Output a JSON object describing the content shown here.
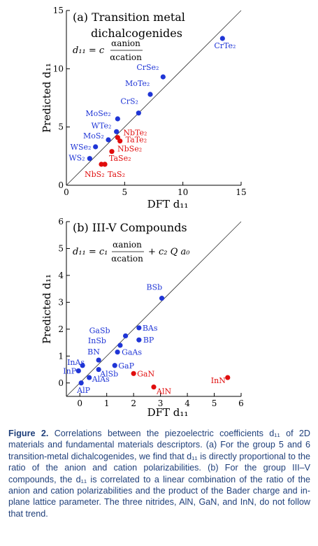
{
  "chart_data": [
    {
      "type": "scatter",
      "title": "(a) Transition metal dichalcogenides",
      "title_lines": [
        "(a) Transition metal",
        "dichalcogenides"
      ],
      "formula": {
        "lhs": "d₁₁ = c",
        "num": "αanion",
        "den": "αcation"
      },
      "xlabel": "DFT d₁₁",
      "ylabel": "Predicted d₁₁",
      "xlim": [
        0,
        15
      ],
      "ylim": [
        0,
        15
      ],
      "xticks": [
        0,
        5,
        10,
        15
      ],
      "yticks": [
        0,
        5,
        10,
        15
      ],
      "xtick_labels": [
        "0",
        "5",
        "10",
        "15"
      ],
      "ytick_labels": [
        "0",
        "5",
        "10",
        "15"
      ],
      "diagonal": true,
      "grid": false,
      "colors": {
        "blue": "#1f35d6",
        "red": "#e00d0d"
      },
      "points": [
        {
          "label": "CrTe₂",
          "x": 13.4,
          "y": 12.6,
          "color": "blue"
        },
        {
          "label": "CrSe₂",
          "x": 8.3,
          "y": 9.3,
          "color": "blue"
        },
        {
          "label": "MoTe₂",
          "x": 7.2,
          "y": 7.8,
          "color": "blue"
        },
        {
          "label": "CrS₂",
          "x": 6.2,
          "y": 6.2,
          "color": "blue"
        },
        {
          "label": "MoSe₂",
          "x": 4.4,
          "y": 5.7,
          "color": "blue"
        },
        {
          "label": "WTe₂",
          "x": 4.3,
          "y": 4.6,
          "color": "blue"
        },
        {
          "label": "MoS₂",
          "x": 3.6,
          "y": 3.9,
          "color": "blue"
        },
        {
          "label": "WSe₂",
          "x": 2.5,
          "y": 3.3,
          "color": "blue"
        },
        {
          "label": "WS₂",
          "x": 2.0,
          "y": 2.3,
          "color": "blue"
        },
        {
          "label": "NbTe₂",
          "x": 4.4,
          "y": 4.1,
          "color": "red"
        },
        {
          "label": "TaTe₂",
          "x": 4.6,
          "y": 3.8,
          "color": "red"
        },
        {
          "label": "NbSe₂",
          "x": 3.9,
          "y": 2.9,
          "color": "red"
        },
        {
          "label": "TaSe₂",
          "x": 3.3,
          "y": 1.8,
          "color": "red"
        },
        {
          "label": "NbS₂",
          "x": 3.0,
          "y": 1.8,
          "color": "red"
        },
        {
          "label": "TaS₂",
          "x": 3.3,
          "y": 1.8,
          "color": "red"
        }
      ]
    },
    {
      "type": "scatter",
      "title": "(b) III-V Compounds",
      "title_lines": [
        "(b) III-V Compounds"
      ],
      "formula": {
        "lhs": "d₁₁ = c₁",
        "num": "αanion",
        "den": "αcation",
        "rhs": "+ c₂ Q a₀"
      },
      "xlabel": "DFT d₁₁",
      "ylabel": "Predicted d₁₁",
      "xlim": [
        -0.5,
        6
      ],
      "ylim": [
        -0.5,
        6
      ],
      "xticks": [
        0,
        1,
        2,
        3,
        4,
        5,
        6
      ],
      "yticks": [
        0,
        1,
        2,
        3,
        4,
        5,
        6
      ],
      "xtick_labels": [
        "0",
        "1",
        "2",
        "3",
        "4",
        "5",
        "6"
      ],
      "ytick_labels": [
        "0",
        "1",
        "2",
        "3",
        "4",
        "5",
        "6"
      ],
      "diagonal": true,
      "grid": false,
      "colors": {
        "blue": "#1f35d6",
        "red": "#e00d0d"
      },
      "points": [
        {
          "label": "BSb",
          "x": 3.05,
          "y": 3.15,
          "color": "blue"
        },
        {
          "label": "BAs",
          "x": 2.2,
          "y": 2.05,
          "color": "blue"
        },
        {
          "label": "BP",
          "x": 2.2,
          "y": 1.6,
          "color": "blue"
        },
        {
          "label": "GaSb",
          "x": 1.7,
          "y": 1.75,
          "color": "blue"
        },
        {
          "label": "InSb",
          "x": 1.5,
          "y": 1.4,
          "color": "blue"
        },
        {
          "label": "GaAs",
          "x": 1.4,
          "y": 1.15,
          "color": "blue"
        },
        {
          "label": "GaP",
          "x": 1.3,
          "y": 0.65,
          "color": "blue"
        },
        {
          "label": "BN",
          "x": 0.7,
          "y": 0.85,
          "color": "blue"
        },
        {
          "label": "InAs",
          "x": 0.1,
          "y": 0.65,
          "color": "blue"
        },
        {
          "label": "AlSb",
          "x": 0.7,
          "y": 0.5,
          "color": "blue"
        },
        {
          "label": "InP",
          "x": -0.05,
          "y": 0.45,
          "color": "blue"
        },
        {
          "label": "AlAs",
          "x": 0.35,
          "y": 0.2,
          "color": "blue"
        },
        {
          "label": "AlP",
          "x": 0.05,
          "y": 0.0,
          "color": "blue"
        },
        {
          "label": "GaN",
          "x": 2.0,
          "y": 0.35,
          "color": "red"
        },
        {
          "label": "AlN",
          "x": 2.75,
          "y": -0.15,
          "color": "red"
        },
        {
          "label": "InN",
          "x": 5.5,
          "y": 0.2,
          "color": "red"
        }
      ]
    }
  ],
  "caption": {
    "label": "Figure 2.",
    "text": "Correlations between the piezoelectric coefficients d₁₁ of 2D materials and fundamental materials descriptors. (a) For the group 5 and 6 transition-metal dichalcogenides, we find that d₁₁ is directly proportional to the ratio of the anion and cation polarizabilities. (b) For the group III–V compounds, the d₁₁ is correlated to a linear combination of the ratio of the anion and cation polarizabilities and the product of the Bader charge and in-plane lattice parameter. The three nitrides, AlN, GaN, and InN, do not follow that trend."
  }
}
